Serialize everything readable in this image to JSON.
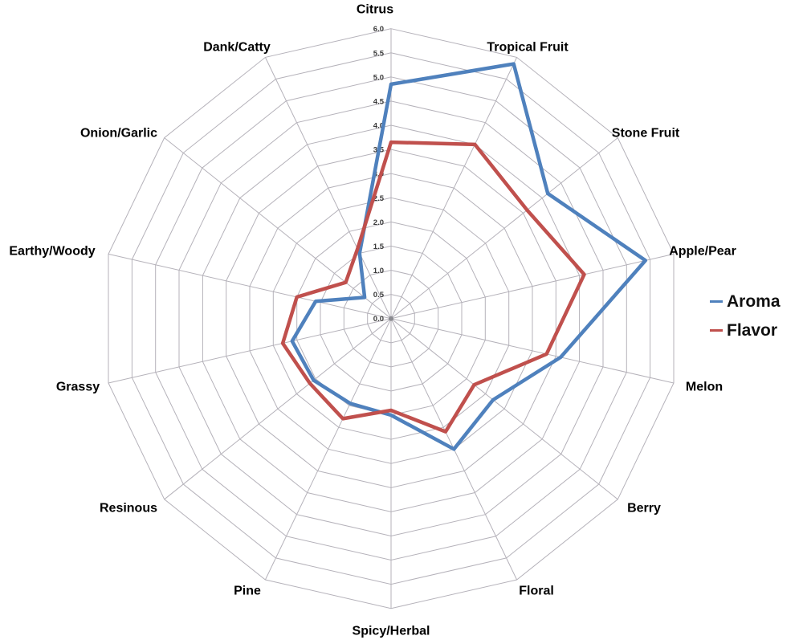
{
  "chart_data": {
    "type": "radar",
    "categories": [
      "Citrus",
      "Tropical Fruit",
      "Stone Fruit",
      "Apple/Pear",
      "Melon",
      "Berry",
      "Floral",
      "Spicy/Herbal",
      "Pine",
      "Resinous",
      "Grassy",
      "Earthy/Woody",
      "Onion/Garlic",
      "Dank/Catty"
    ],
    "series": [
      {
        "name": "Aroma",
        "color": "#4F81BD",
        "values": [
          4.85,
          5.85,
          4.15,
          5.4,
          3.6,
          2.7,
          3.0,
          2.0,
          1.95,
          2.05,
          2.1,
          1.6,
          0.7,
          1.5
        ]
      },
      {
        "name": "Flavor",
        "color": "#C0504D",
        "values": [
          3.65,
          4.0,
          3.6,
          4.1,
          3.3,
          2.2,
          2.6,
          1.9,
          2.3,
          2.15,
          2.3,
          2.0,
          1.2,
          1.6
        ]
      }
    ],
    "r_axis": {
      "min": 0,
      "max": 6,
      "tick_step": 0.5,
      "tick_labels": [
        "0.0",
        "0.5",
        "1.0",
        "1.5",
        "2.0",
        "2.5",
        "3.0",
        "3.5",
        "4.0",
        "4.5",
        "5.0",
        "5.5",
        "6.0"
      ]
    },
    "grid": true,
    "legend_position": "right",
    "title": ""
  },
  "legend": {
    "items": [
      {
        "label": "Aroma",
        "color": "#4F81BD"
      },
      {
        "label": "Flavor",
        "color": "#C0504D"
      }
    ]
  },
  "colors": {
    "background": "#ffffff",
    "gridline": "#b5b2ba",
    "tick_text": "#3a3a3a",
    "label_text": "#000000",
    "center_dot": "#8a8a90"
  }
}
